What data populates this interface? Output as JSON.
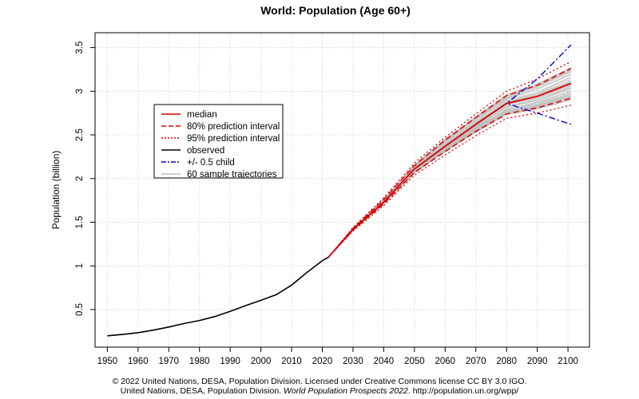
{
  "chart_data": {
    "type": "line",
    "title": "World: Population (Age 60+)",
    "xlabel": "",
    "ylabel": "Population (billion)",
    "xlim": [
      1946,
      2107
    ],
    "ylim": [
      0.07,
      3.67
    ],
    "x_ticks": [
      1950,
      1960,
      1970,
      1980,
      1990,
      2000,
      2010,
      2020,
      2030,
      2040,
      2050,
      2060,
      2070,
      2080,
      2090,
      2100
    ],
    "y_ticks": [
      0.5,
      1,
      1.5,
      2,
      2.5,
      3,
      3.5
    ],
    "y_tick_labels": [
      "0.5",
      "1",
      "1.5",
      "2",
      "2.5",
      "3",
      "3.5"
    ],
    "grid": true,
    "legend_position": "left-middle",
    "legend": [
      {
        "label": "median",
        "color": "#dd0000",
        "style": "solid"
      },
      {
        "label": "80% prediction interval",
        "color": "#dd0000",
        "style": "dashed"
      },
      {
        "label": "95% prediction interval",
        "color": "#dd0000",
        "style": "dotted"
      },
      {
        "label": "observed",
        "color": "#000000",
        "style": "solid"
      },
      {
        "label": "+/- 0.5 child",
        "color": "#0000cc",
        "style": "dashdot"
      },
      {
        "label": "60 sample trajectories",
        "color": "#bbbbbb",
        "style": "solid"
      }
    ],
    "series": [
      {
        "name": "observed",
        "color": "#000000",
        "x": [
          1950,
          1955,
          1960,
          1965,
          1970,
          1975,
          1980,
          1985,
          1990,
          1995,
          2000,
          2005,
          2010,
          2015,
          2020,
          2022
        ],
        "y": [
          0.2,
          0.215,
          0.235,
          0.265,
          0.3,
          0.34,
          0.375,
          0.42,
          0.48,
          0.545,
          0.605,
          0.67,
          0.78,
          0.925,
          1.06,
          1.1
        ]
      },
      {
        "name": "median",
        "color": "#dd0000",
        "x": [
          2022,
          2030,
          2040,
          2050,
          2060,
          2070,
          2080,
          2090,
          2101
        ],
        "y": [
          1.1,
          1.42,
          1.73,
          2.11,
          2.37,
          2.62,
          2.86,
          2.94,
          3.09
        ]
      },
      {
        "name": "80% prediction interval (upper)",
        "color": "#dd0000",
        "x": [
          2022,
          2030,
          2040,
          2050,
          2060,
          2070,
          2080,
          2090,
          2101
        ],
        "y": [
          1.1,
          1.43,
          1.76,
          2.15,
          2.44,
          2.7,
          2.95,
          3.07,
          3.26
        ]
      },
      {
        "name": "80% prediction interval (lower)",
        "color": "#dd0000",
        "x": [
          2022,
          2030,
          2040,
          2050,
          2060,
          2070,
          2080,
          2090,
          2101
        ],
        "y": [
          1.1,
          1.41,
          1.71,
          2.07,
          2.31,
          2.54,
          2.74,
          2.81,
          2.92
        ]
      },
      {
        "name": "95% prediction interval (upper)",
        "color": "#dd0000",
        "x": [
          2022,
          2030,
          2040,
          2050,
          2060,
          2070,
          2080,
          2090,
          2101
        ],
        "y": [
          1.1,
          1.44,
          1.78,
          2.18,
          2.47,
          2.74,
          3.0,
          3.14,
          3.34
        ]
      },
      {
        "name": "95% prediction interval (lower)",
        "color": "#dd0000",
        "x": [
          2022,
          2030,
          2040,
          2050,
          2060,
          2070,
          2080,
          2090,
          2101
        ],
        "y": [
          1.1,
          1.4,
          1.69,
          2.04,
          2.27,
          2.49,
          2.69,
          2.75,
          2.84
        ]
      },
      {
        "name": "+0.5 child",
        "color": "#0000cc",
        "x": [
          2022,
          2030,
          2040,
          2050,
          2060,
          2070,
          2080,
          2090,
          2101
        ],
        "y": [
          1.1,
          1.42,
          1.73,
          2.11,
          2.37,
          2.62,
          2.86,
          3.14,
          3.53
        ]
      },
      {
        "name": "-0.5 child",
        "color": "#0000cc",
        "x": [
          2022,
          2030,
          2040,
          2050,
          2060,
          2070,
          2080,
          2090,
          2101
        ],
        "y": [
          1.1,
          1.42,
          1.73,
          2.11,
          2.37,
          2.62,
          2.86,
          2.75,
          2.62
        ]
      }
    ]
  },
  "footer": {
    "line1": "© 2022 United Nations, DESA, Population Division. Licensed under Creative Commons license CC BY 3.0 IGO.",
    "line2_prefix": "United Nations, DESA, Population Division. ",
    "line2_italic": "World Population Prospects 2022",
    "line2_suffix": ". http://population.un.org/wpp/"
  }
}
